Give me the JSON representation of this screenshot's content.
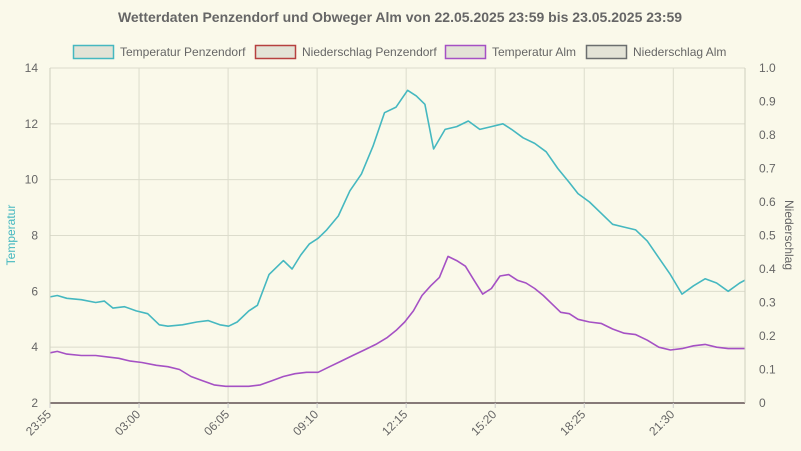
{
  "chart_data": {
    "type": "line",
    "title": "Wetterdaten Penzendorf und Obweger Alm von 22.05.2025 23:59 bis 23.05.2025 23:59",
    "y_left": {
      "label": "Temperatur",
      "ylim": [
        2,
        14
      ],
      "ticks": [
        "2",
        "4",
        "6",
        "8",
        "10",
        "12",
        "14"
      ]
    },
    "y_right": {
      "label": "Niederschlag",
      "ylim": [
        0,
        1
      ],
      "ticks": [
        "0",
        "0.1",
        "0.2",
        "0.3",
        "0.4",
        "0.5",
        "0.6",
        "0.7",
        "0.8",
        "0.9",
        "1.0"
      ]
    },
    "x_ticks": [
      "23:55",
      "03:00",
      "06:05",
      "09:10",
      "12:15",
      "15:20",
      "18:25",
      "21:30"
    ],
    "x_tick_hours": [
      23.9167,
      27.0,
      30.0833,
      33.1667,
      36.25,
      39.3333,
      42.4167,
      45.5
    ],
    "x_range_hours": [
      23.9167,
      47.9833
    ],
    "grid": true,
    "legend_position": "top",
    "series": [
      {
        "name": "Temperatur Penzendorf",
        "axis": "left",
        "color": "#45b8c0",
        "fill": "#e3e3d6",
        "x": [
          23.92,
          24.17,
          24.5,
          25.0,
          25.5,
          25.8,
          26.1,
          26.5,
          26.9,
          27.3,
          27.7,
          28.0,
          28.5,
          29.0,
          29.4,
          29.8,
          30.1,
          30.4,
          30.8,
          31.1,
          31.5,
          32.0,
          32.3,
          32.6,
          32.9,
          33.2,
          33.5,
          33.9,
          34.3,
          34.7,
          35.1,
          35.5,
          35.9,
          36.1,
          36.3,
          36.6,
          36.9,
          37.2,
          37.6,
          38.0,
          38.4,
          38.8,
          39.2,
          39.6,
          39.9,
          40.3,
          40.7,
          41.1,
          41.5,
          41.9,
          42.2,
          42.6,
          43.0,
          43.4,
          43.8,
          44.2,
          44.6,
          45.0,
          45.4,
          45.8,
          46.2,
          46.6,
          47.0,
          47.4,
          47.8,
          47.98
        ],
        "y": [
          5.8,
          5.85,
          5.75,
          5.7,
          5.6,
          5.65,
          5.4,
          5.45,
          5.3,
          5.2,
          4.8,
          4.75,
          4.8,
          4.9,
          4.95,
          4.8,
          4.75,
          4.9,
          5.3,
          5.5,
          6.6,
          7.1,
          6.8,
          7.3,
          7.7,
          7.9,
          8.2,
          8.7,
          9.6,
          10.2,
          11.2,
          12.4,
          12.6,
          12.9,
          13.2,
          13.0,
          12.7,
          11.1,
          11.8,
          11.9,
          12.1,
          11.8,
          11.9,
          12.0,
          11.8,
          11.5,
          11.3,
          11.0,
          10.4,
          9.9,
          9.5,
          9.2,
          8.8,
          8.4,
          8.3,
          8.2,
          7.8,
          7.2,
          6.6,
          5.9,
          6.2,
          6.45,
          6.3,
          6.0,
          6.3,
          6.4
        ]
      },
      {
        "name": "Niederschlag Penzendorf",
        "axis": "right",
        "color": "#b6403f",
        "fill": "#e3e3d6",
        "x": [
          23.92,
          47.98
        ],
        "y": [
          0,
          0
        ]
      },
      {
        "name": "Temperatur Alm",
        "axis": "left",
        "color": "#a551c4",
        "fill": "#e3e3d6",
        "x": [
          23.92,
          24.17,
          24.5,
          25.0,
          25.5,
          25.9,
          26.3,
          26.7,
          27.1,
          27.6,
          28.0,
          28.4,
          28.8,
          29.2,
          29.6,
          30.0,
          30.4,
          30.8,
          31.2,
          31.6,
          32.0,
          32.4,
          32.8,
          33.2,
          33.6,
          34.0,
          34.4,
          34.8,
          35.2,
          35.6,
          35.9,
          36.2,
          36.5,
          36.8,
          37.1,
          37.4,
          37.7,
          38.0,
          38.3,
          38.6,
          38.9,
          39.2,
          39.5,
          39.8,
          40.1,
          40.4,
          40.7,
          41.0,
          41.3,
          41.6,
          41.9,
          42.2,
          42.6,
          43.0,
          43.4,
          43.8,
          44.2,
          44.6,
          45.0,
          45.4,
          45.8,
          46.2,
          46.6,
          47.0,
          47.4,
          47.8,
          47.98
        ],
        "y": [
          3.8,
          3.85,
          3.75,
          3.7,
          3.7,
          3.65,
          3.6,
          3.5,
          3.45,
          3.35,
          3.3,
          3.2,
          2.95,
          2.8,
          2.65,
          2.6,
          2.6,
          2.6,
          2.65,
          2.8,
          2.95,
          3.05,
          3.1,
          3.1,
          3.3,
          3.5,
          3.7,
          3.9,
          4.1,
          4.35,
          4.6,
          4.9,
          5.3,
          5.85,
          6.2,
          6.5,
          7.25,
          7.1,
          6.9,
          6.4,
          5.9,
          6.1,
          6.55,
          6.6,
          6.4,
          6.3,
          6.1,
          5.85,
          5.55,
          5.25,
          5.2,
          5.0,
          4.9,
          4.85,
          4.65,
          4.5,
          4.45,
          4.25,
          4.0,
          3.9,
          3.95,
          4.05,
          4.1,
          4.0,
          3.95,
          3.95,
          3.95
        ]
      },
      {
        "name": "Niederschlag Alm",
        "axis": "right",
        "color": "#6b6e6e",
        "fill": "#e3e3d6",
        "x": [
          23.92,
          47.98
        ],
        "y": [
          0,
          0
        ]
      }
    ]
  }
}
